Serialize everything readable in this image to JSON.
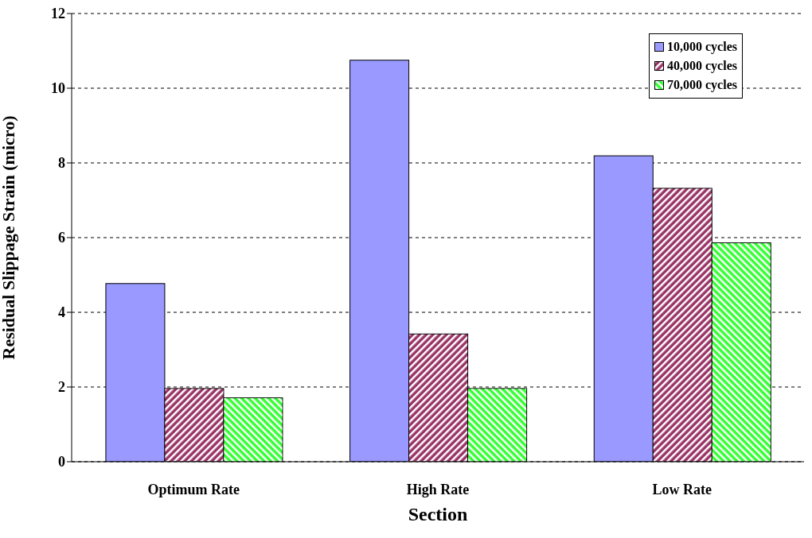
{
  "chart_data": {
    "type": "bar",
    "xlabel": "Section",
    "ylabel": "Residual Slippage Strain (micro)",
    "categories": [
      "Optimum Rate",
      "High Rate",
      "Low Rate"
    ],
    "series": [
      {
        "name": "10,000 cycles",
        "color": "#9999ff",
        "values": [
          4.77,
          10.75,
          8.19
        ]
      },
      {
        "name": "40,000 cycles",
        "color": "#993366",
        "values": [
          1.96,
          3.42,
          7.32
        ]
      },
      {
        "name": "70,000 cycles",
        "color": "#33ff33",
        "values": [
          1.71,
          1.96,
          5.86
        ]
      }
    ],
    "ylim": [
      0,
      12
    ],
    "yticks": [
      0,
      2,
      4,
      6,
      8,
      10,
      12
    ],
    "grid": "y",
    "legend": "top right"
  }
}
